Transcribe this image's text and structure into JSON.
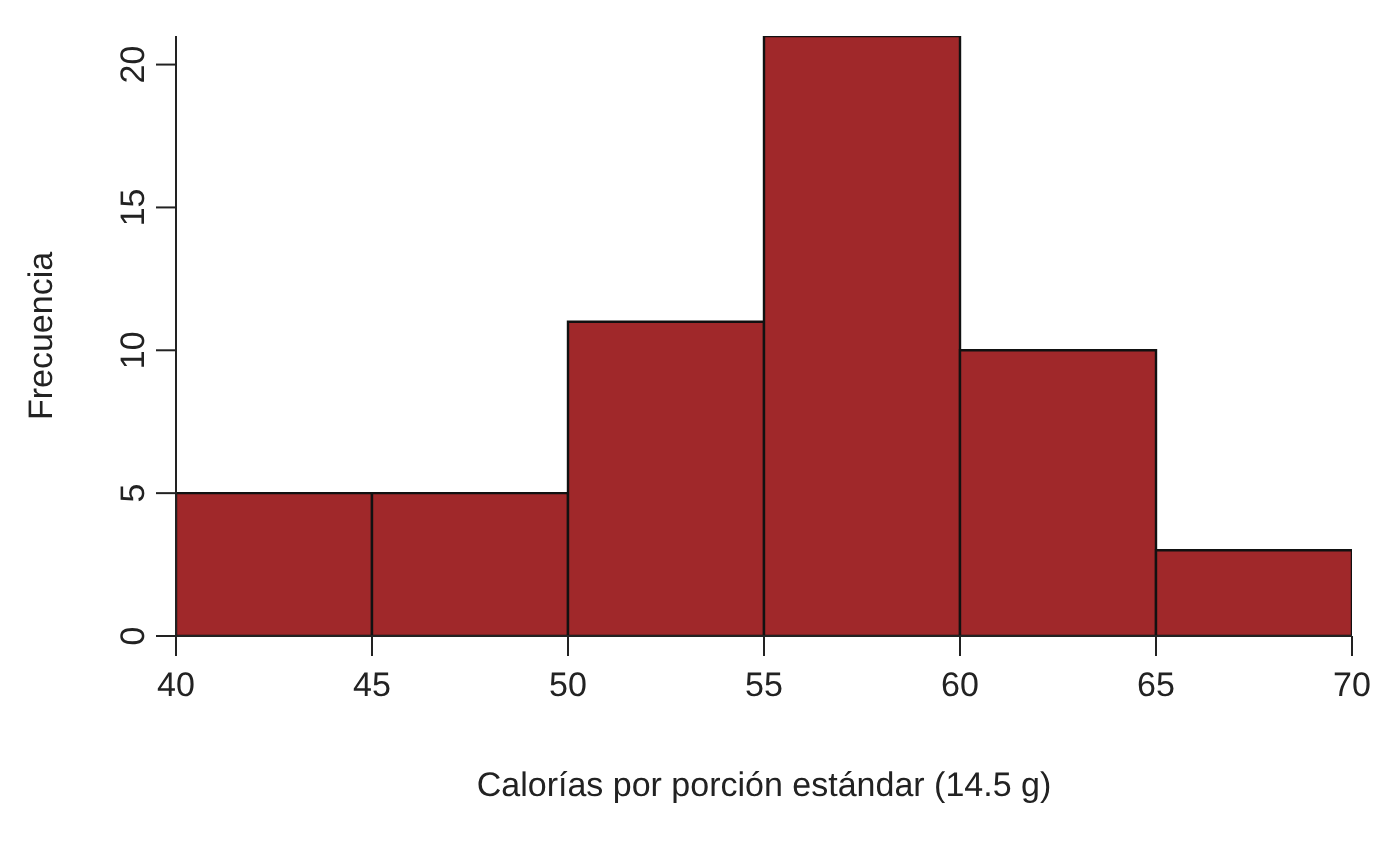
{
  "chart_data": {
    "type": "histogram",
    "xlabel": "Calorías por porción estándar (14.5 g)",
    "ylabel": "Frecuencia",
    "bins": [
      40,
      45,
      50,
      55,
      60,
      65,
      70
    ],
    "values": [
      5,
      5,
      11,
      21,
      10,
      3
    ],
    "color": "#a0282a",
    "xlim": [
      40,
      70
    ],
    "xticks": [
      40,
      45,
      50,
      55,
      60,
      65,
      70
    ],
    "ylim": [
      0,
      21
    ],
    "yticks": [
      0,
      5,
      10,
      15,
      20
    ],
    "grid": false,
    "legend": false
  }
}
